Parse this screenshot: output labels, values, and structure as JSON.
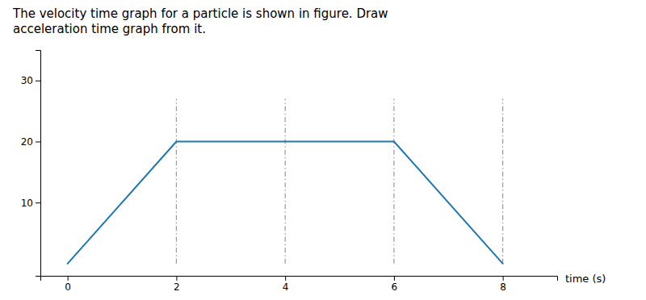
{
  "chart_data": {
    "type": "line",
    "title": [
      "The velocity time graph for a particle is shown in figure. Draw",
      "acceleration time graph from it."
    ],
    "x_label": "time (s)",
    "x": [
      0,
      2,
      6,
      8
    ],
    "values": [
      0,
      20,
      20,
      0
    ],
    "xlim": [
      -0.5,
      9.0
    ],
    "ylim": [
      -2,
      35
    ],
    "xticks": [
      0,
      2,
      4,
      6,
      8
    ],
    "yticks": [
      10,
      20,
      30
    ],
    "vlines": [
      2,
      4,
      6,
      8
    ],
    "vline_range": [
      0,
      27
    ],
    "grid": false
  }
}
